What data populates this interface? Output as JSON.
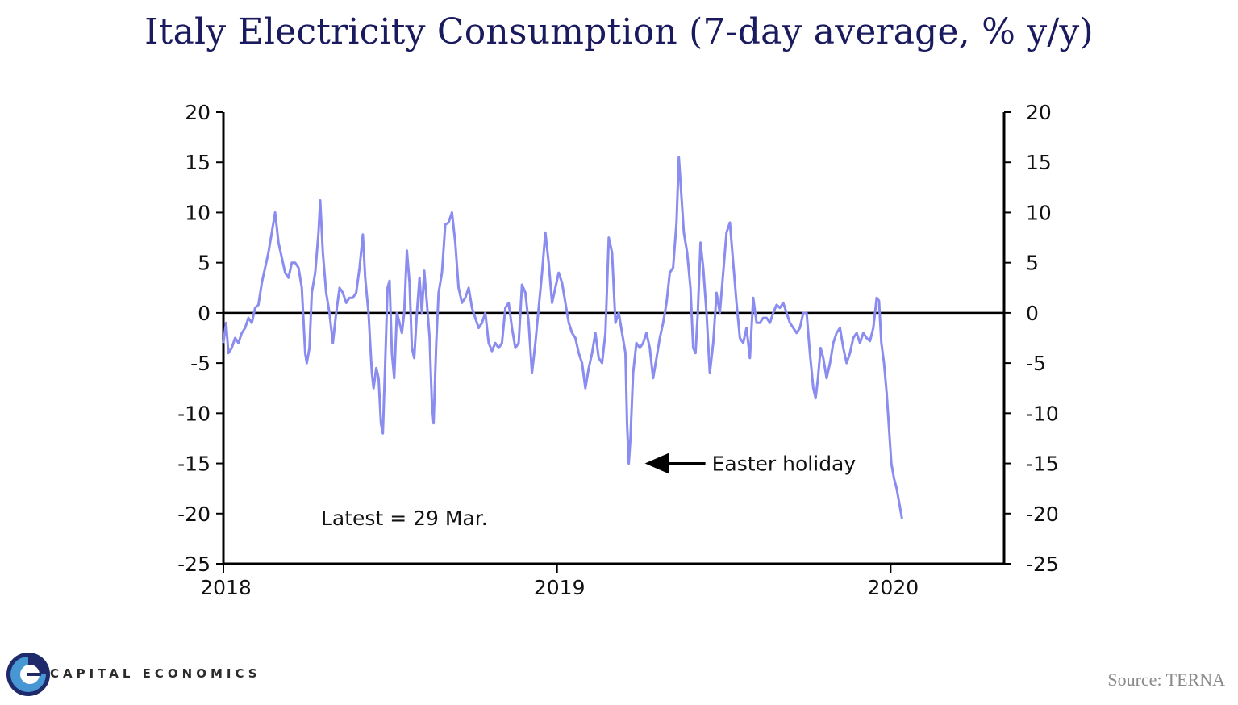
{
  "chart_data": {
    "type": "line",
    "title": "Italy Electricity Consumption (7-day average, % y/y)",
    "xlabel": "",
    "ylabel": "",
    "ylim": [
      -25,
      20
    ],
    "yticks": [
      "20",
      "15",
      "10",
      "5",
      "0",
      "-5",
      "-10",
      "-15",
      "-20",
      "-25"
    ],
    "xlim": [
      2018.0,
      2020.34
    ],
    "xticks": [
      {
        "value": 2018,
        "label": "2018"
      },
      {
        "value": 2019,
        "label": "2019"
      },
      {
        "value": 2020,
        "label": "2020"
      }
    ],
    "series": [
      {
        "name": "Italy electricity consumption (7-day avg, % y/y)",
        "color": "#8a8cf0",
        "points": [
          [
            2018.0,
            -3.0
          ],
          [
            2018.008,
            -1.0
          ],
          [
            2018.015,
            -4.0
          ],
          [
            2018.025,
            -3.5
          ],
          [
            2018.035,
            -2.5
          ],
          [
            2018.045,
            -3.0
          ],
          [
            2018.055,
            -2.0
          ],
          [
            2018.065,
            -1.5
          ],
          [
            2018.075,
            -0.5
          ],
          [
            2018.085,
            -1.0
          ],
          [
            2018.095,
            0.5
          ],
          [
            2018.105,
            0.8
          ],
          [
            2018.115,
            3.0
          ],
          [
            2018.125,
            4.5
          ],
          [
            2018.135,
            6.0
          ],
          [
            2018.145,
            8.0
          ],
          [
            2018.155,
            10.0
          ],
          [
            2018.165,
            7.0
          ],
          [
            2018.175,
            5.5
          ],
          [
            2018.185,
            4.0
          ],
          [
            2018.195,
            3.5
          ],
          [
            2018.205,
            5.0
          ],
          [
            2018.215,
            5.0
          ],
          [
            2018.225,
            4.5
          ],
          [
            2018.235,
            2.5
          ],
          [
            2018.245,
            -4.0
          ],
          [
            2018.25,
            -5.0
          ],
          [
            2018.258,
            -3.5
          ],
          [
            2018.265,
            2.0
          ],
          [
            2018.275,
            4.0
          ],
          [
            2018.285,
            8.0
          ],
          [
            2018.29,
            11.2
          ],
          [
            2018.298,
            6.0
          ],
          [
            2018.308,
            2.0
          ],
          [
            2018.318,
            0.0
          ],
          [
            2018.328,
            -3.0
          ],
          [
            2018.338,
            0.0
          ],
          [
            2018.348,
            2.5
          ],
          [
            2018.358,
            2.0
          ],
          [
            2018.368,
            1.0
          ],
          [
            2018.378,
            1.5
          ],
          [
            2018.388,
            1.5
          ],
          [
            2018.398,
            2.0
          ],
          [
            2018.408,
            4.5
          ],
          [
            2018.418,
            7.8
          ],
          [
            2018.425,
            3.5
          ],
          [
            2018.435,
            0.0
          ],
          [
            2018.445,
            -6.0
          ],
          [
            2018.45,
            -7.5
          ],
          [
            2018.458,
            -5.5
          ],
          [
            2018.465,
            -6.5
          ],
          [
            2018.472,
            -11.0
          ],
          [
            2018.478,
            -12.0
          ],
          [
            2018.485,
            -5.0
          ],
          [
            2018.492,
            2.5
          ],
          [
            2018.498,
            3.2
          ],
          [
            2018.505,
            -4.0
          ],
          [
            2018.512,
            -6.5
          ],
          [
            2018.52,
            0.0
          ],
          [
            2018.528,
            -1.0
          ],
          [
            2018.535,
            -2.0
          ],
          [
            2018.542,
            0.0
          ],
          [
            2018.55,
            6.2
          ],
          [
            2018.558,
            3.0
          ],
          [
            2018.565,
            -3.5
          ],
          [
            2018.572,
            -4.5
          ],
          [
            2018.58,
            0.0
          ],
          [
            2018.588,
            3.5
          ],
          [
            2018.595,
            0.0
          ],
          [
            2018.602,
            4.2
          ],
          [
            2018.61,
            1.0
          ],
          [
            2018.618,
            -2.5
          ],
          [
            2018.625,
            -9.0
          ],
          [
            2018.63,
            -11.0
          ],
          [
            2018.638,
            -3.0
          ],
          [
            2018.645,
            2.0
          ],
          [
            2018.655,
            4.0
          ],
          [
            2018.665,
            8.8
          ],
          [
            2018.675,
            9.0
          ],
          [
            2018.685,
            10.0
          ],
          [
            2018.695,
            7.0
          ],
          [
            2018.705,
            2.5
          ],
          [
            2018.715,
            1.0
          ],
          [
            2018.725,
            1.5
          ],
          [
            2018.735,
            2.5
          ],
          [
            2018.745,
            0.5
          ],
          [
            2018.755,
            -0.5
          ],
          [
            2018.765,
            -1.5
          ],
          [
            2018.775,
            -1.0
          ],
          [
            2018.785,
            0.0
          ],
          [
            2018.795,
            -3.0
          ],
          [
            2018.805,
            -3.8
          ],
          [
            2018.815,
            -3.0
          ],
          [
            2018.825,
            -3.5
          ],
          [
            2018.835,
            -3.0
          ],
          [
            2018.845,
            0.5
          ],
          [
            2018.855,
            1.0
          ],
          [
            2018.865,
            -1.5
          ],
          [
            2018.875,
            -3.5
          ],
          [
            2018.885,
            -3.0
          ],
          [
            2018.895,
            2.8
          ],
          [
            2018.905,
            2.0
          ],
          [
            2018.915,
            -1.0
          ],
          [
            2018.925,
            -6.0
          ],
          [
            2018.935,
            -3.0
          ],
          [
            2018.945,
            0.5
          ],
          [
            2018.955,
            4.0
          ],
          [
            2018.965,
            8.0
          ],
          [
            2018.975,
            5.0
          ],
          [
            2018.985,
            1.0
          ],
          [
            2018.995,
            2.5
          ],
          [
            2019.005,
            4.0
          ],
          [
            2019.015,
            3.0
          ],
          [
            2019.025,
            1.0
          ],
          [
            2019.035,
            -1.0
          ],
          [
            2019.045,
            -2.0
          ],
          [
            2019.055,
            -2.5
          ],
          [
            2019.065,
            -4.0
          ],
          [
            2019.075,
            -5.0
          ],
          [
            2019.085,
            -7.5
          ],
          [
            2019.095,
            -5.5
          ],
          [
            2019.105,
            -4.0
          ],
          [
            2019.115,
            -2.0
          ],
          [
            2019.125,
            -4.5
          ],
          [
            2019.135,
            -5.0
          ],
          [
            2019.145,
            -2.0
          ],
          [
            2019.155,
            7.5
          ],
          [
            2019.165,
            6.0
          ],
          [
            2019.175,
            -1.0
          ],
          [
            2019.185,
            0.0
          ],
          [
            2019.195,
            -2.0
          ],
          [
            2019.205,
            -4.0
          ],
          [
            2019.21,
            -11.0
          ],
          [
            2019.215,
            -15.0
          ],
          [
            2019.22,
            -12.5
          ],
          [
            2019.228,
            -6.0
          ],
          [
            2019.238,
            -3.0
          ],
          [
            2019.248,
            -3.5
          ],
          [
            2019.258,
            -3.0
          ],
          [
            2019.268,
            -2.0
          ],
          [
            2019.278,
            -3.5
          ],
          [
            2019.288,
            -6.5
          ],
          [
            2019.298,
            -4.5
          ],
          [
            2019.308,
            -2.5
          ],
          [
            2019.318,
            -1.0
          ],
          [
            2019.328,
            1.0
          ],
          [
            2019.338,
            4.0
          ],
          [
            2019.348,
            4.5
          ],
          [
            2019.358,
            9.0
          ],
          [
            2019.365,
            15.5
          ],
          [
            2019.372,
            12.0
          ],
          [
            2019.38,
            8.0
          ],
          [
            2019.39,
            6.0
          ],
          [
            2019.4,
            2.5
          ],
          [
            2019.408,
            -3.5
          ],
          [
            2019.415,
            -4.0
          ],
          [
            2019.422,
            0.0
          ],
          [
            2019.43,
            7.0
          ],
          [
            2019.438,
            4.5
          ],
          [
            2019.448,
            0.0
          ],
          [
            2019.458,
            -6.0
          ],
          [
            2019.468,
            -3.0
          ],
          [
            2019.478,
            2.0
          ],
          [
            2019.488,
            0.0
          ],
          [
            2019.498,
            4.0
          ],
          [
            2019.508,
            8.0
          ],
          [
            2019.518,
            9.0
          ],
          [
            2019.528,
            5.0
          ],
          [
            2019.538,
            1.0
          ],
          [
            2019.548,
            -2.5
          ],
          [
            2019.558,
            -3.0
          ],
          [
            2019.568,
            -1.5
          ],
          [
            2019.578,
            -4.5
          ],
          [
            2019.588,
            1.5
          ],
          [
            2019.598,
            -1.0
          ],
          [
            2019.608,
            -1.0
          ],
          [
            2019.618,
            -0.5
          ],
          [
            2019.628,
            -0.5
          ],
          [
            2019.638,
            -1.0
          ],
          [
            2019.648,
            0.0
          ],
          [
            2019.658,
            0.8
          ],
          [
            2019.668,
            0.5
          ],
          [
            2019.678,
            1.0
          ],
          [
            2019.688,
            0.0
          ],
          [
            2019.698,
            -1.0
          ],
          [
            2019.708,
            -1.5
          ],
          [
            2019.718,
            -2.0
          ],
          [
            2019.728,
            -1.5
          ],
          [
            2019.738,
            0.0
          ],
          [
            2019.748,
            0.0
          ],
          [
            2019.758,
            -4.0
          ],
          [
            2019.768,
            -7.5
          ],
          [
            2019.775,
            -8.5
          ],
          [
            2019.782,
            -6.5
          ],
          [
            2019.79,
            -3.5
          ],
          [
            2019.798,
            -4.5
          ],
          [
            2019.808,
            -6.5
          ],
          [
            2019.818,
            -5.0
          ],
          [
            2019.828,
            -3.0
          ],
          [
            2019.838,
            -2.0
          ],
          [
            2019.848,
            -1.5
          ],
          [
            2019.858,
            -3.5
          ],
          [
            2019.868,
            -5.0
          ],
          [
            2019.878,
            -4.0
          ],
          [
            2019.888,
            -2.5
          ],
          [
            2019.898,
            -2.0
          ],
          [
            2019.908,
            -3.0
          ],
          [
            2019.918,
            -2.0
          ],
          [
            2019.928,
            -2.5
          ],
          [
            2019.938,
            -2.8
          ],
          [
            2019.948,
            -1.5
          ],
          [
            2019.958,
            1.5
          ],
          [
            2019.965,
            1.2
          ],
          [
            2019.972,
            -3.0
          ],
          [
            2019.98,
            -5.0
          ],
          [
            2019.988,
            -8.0
          ],
          [
            2019.996,
            -12.0
          ],
          [
            2020.002,
            -15.0
          ],
          [
            2020.01,
            -16.5
          ],
          [
            2020.018,
            -17.5
          ],
          [
            2020.026,
            -19.0
          ],
          [
            2020.034,
            -20.5
          ]
        ]
      }
    ],
    "annotations": [
      {
        "text": "Easter holiday",
        "x": 2019.215,
        "y": -15.0,
        "arrow": true
      },
      {
        "text": "Latest = 29 Mar."
      }
    ]
  },
  "footer": {
    "brand": "CAPITAL ECONOMICS",
    "source": "Source: TERNA"
  },
  "colors": {
    "title": "#1a1a5e",
    "line": "#8a8cf0",
    "logo_dark": "#1f2a6b",
    "logo_light": "#4aa3df"
  }
}
